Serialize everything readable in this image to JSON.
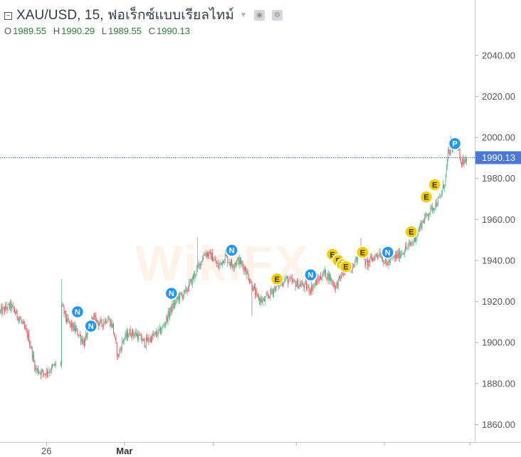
{
  "header": {
    "title": "XAU/USD, 15, ฟอเร็กซ์แบบเรียลไทม์",
    "collapse_icon": "minus-square-icon",
    "tools": [
      "eye-icon",
      "settings-icon"
    ],
    "ohlc": {
      "o_label": "O",
      "o_value": "1989.55",
      "h_label": "H",
      "h_value": "1990.29",
      "l_label": "L",
      "l_value": "1989.55",
      "c_label": "C",
      "c_value": "1990.13"
    }
  },
  "watermark": "WikiFX",
  "colors": {
    "up": "#53b987",
    "down": "#eb4d5c",
    "price_line": "#4a78d6",
    "price_tag": "#4a78d6",
    "event_n": "#2196f3",
    "event_e": "#f5cc00",
    "event_p": "#2196f3"
  },
  "chart_data": {
    "type": "candlestick",
    "symbol": "XAU/USD",
    "interval": "15",
    "y_axis": {
      "ticks": [
        "2040.00",
        "2020.00",
        "2000.00",
        "1980.00",
        "1960.00",
        "1940.00",
        "1920.00",
        "1900.00",
        "1880.00",
        "1860.00"
      ],
      "tick_values": [
        2040,
        2020,
        2000,
        1980,
        1960,
        1940,
        1920,
        1900,
        1880,
        1860
      ],
      "range": [
        1851.5,
        2067
      ],
      "position": "right"
    },
    "x_axis": {
      "labels": [
        {
          "text": "26",
          "index": 55,
          "bold": false
        },
        {
          "text": "Mar",
          "index": 148,
          "bold": true
        }
      ]
    },
    "current_price": "1990.13",
    "current_price_value": 1990.13,
    "price_path": [
      {
        "i": 0,
        "p": 1915
      },
      {
        "i": 12,
        "p": 1918
      },
      {
        "i": 24,
        "p": 1911
      },
      {
        "i": 34,
        "p": 1902
      },
      {
        "i": 42,
        "p": 1887
      },
      {
        "i": 52,
        "p": 1885
      },
      {
        "i": 60,
        "p": 1887
      },
      {
        "i": 68,
        "p": 1890
      },
      {
        "i": 72,
        "p": 1890
      },
      {
        "i": 73,
        "p": 1918
      },
      {
        "i": 80,
        "p": 1910
      },
      {
        "i": 90,
        "p": 1906
      },
      {
        "i": 100,
        "p": 1900
      },
      {
        "i": 110,
        "p": 1912
      },
      {
        "i": 120,
        "p": 1909
      },
      {
        "i": 128,
        "p": 1912
      },
      {
        "i": 134,
        "p": 1908
      },
      {
        "i": 140,
        "p": 1893
      },
      {
        "i": 146,
        "p": 1901
      },
      {
        "i": 154,
        "p": 1905
      },
      {
        "i": 162,
        "p": 1904
      },
      {
        "i": 172,
        "p": 1900
      },
      {
        "i": 182,
        "p": 1903
      },
      {
        "i": 192,
        "p": 1906
      },
      {
        "i": 202,
        "p": 1915
      },
      {
        "i": 212,
        "p": 1922
      },
      {
        "i": 220,
        "p": 1924
      },
      {
        "i": 228,
        "p": 1930
      },
      {
        "i": 236,
        "p": 1937
      },
      {
        "i": 244,
        "p": 1944
      },
      {
        "i": 252,
        "p": 1942
      },
      {
        "i": 260,
        "p": 1937
      },
      {
        "i": 268,
        "p": 1942
      },
      {
        "i": 276,
        "p": 1938
      },
      {
        "i": 284,
        "p": 1940
      },
      {
        "i": 292,
        "p": 1936
      },
      {
        "i": 300,
        "p": 1928
      },
      {
        "i": 306,
        "p": 1922
      },
      {
        "i": 314,
        "p": 1920
      },
      {
        "i": 322,
        "p": 1924
      },
      {
        "i": 330,
        "p": 1928
      },
      {
        "i": 340,
        "p": 1931
      },
      {
        "i": 350,
        "p": 1929
      },
      {
        "i": 360,
        "p": 1928
      },
      {
        "i": 370,
        "p": 1926
      },
      {
        "i": 378,
        "p": 1930
      },
      {
        "i": 386,
        "p": 1934
      },
      {
        "i": 392,
        "p": 1932
      },
      {
        "i": 400,
        "p": 1927
      },
      {
        "i": 408,
        "p": 1934
      },
      {
        "i": 416,
        "p": 1936
      },
      {
        "i": 424,
        "p": 1940
      },
      {
        "i": 430,
        "p": 1946
      },
      {
        "i": 436,
        "p": 1938
      },
      {
        "i": 444,
        "p": 1941
      },
      {
        "i": 452,
        "p": 1944
      },
      {
        "i": 460,
        "p": 1938
      },
      {
        "i": 468,
        "p": 1941
      },
      {
        "i": 476,
        "p": 1943
      },
      {
        "i": 484,
        "p": 1946
      },
      {
        "i": 490,
        "p": 1948
      },
      {
        "i": 496,
        "p": 1952
      },
      {
        "i": 502,
        "p": 1958
      },
      {
        "i": 510,
        "p": 1963
      },
      {
        "i": 518,
        "p": 1967
      },
      {
        "i": 524,
        "p": 1970
      },
      {
        "i": 530,
        "p": 1978
      },
      {
        "i": 534,
        "p": 1992
      },
      {
        "i": 538,
        "p": 1994
      },
      {
        "i": 542,
        "p": 1998
      },
      {
        "i": 546,
        "p": 1994
      },
      {
        "i": 550,
        "p": 1988
      },
      {
        "i": 556,
        "p": 1990.13
      }
    ],
    "events": [
      {
        "letter": "N",
        "index": 92,
        "price": 1915
      },
      {
        "letter": "N",
        "index": 108,
        "price": 1908
      },
      {
        "letter": "N",
        "index": 204,
        "price": 1924
      },
      {
        "letter": "N",
        "index": 276,
        "price": 1945
      },
      {
        "letter": "E",
        "index": 330,
        "price": 1931
      },
      {
        "letter": "N",
        "index": 370,
        "price": 1933
      },
      {
        "letter": "E",
        "index": 396,
        "price": 1943
      },
      {
        "letter": "E",
        "index": 403,
        "price": 1940
      },
      {
        "letter": "E",
        "index": 408,
        "price": 1938
      },
      {
        "letter": "E",
        "index": 412,
        "price": 1937
      },
      {
        "letter": "E",
        "index": 432,
        "price": 1944
      },
      {
        "letter": "N",
        "index": 462,
        "price": 1944
      },
      {
        "letter": "E",
        "index": 490,
        "price": 1954
      },
      {
        "letter": "E",
        "index": 508,
        "price": 1971
      },
      {
        "letter": "E",
        "index": 518,
        "price": 1977
      },
      {
        "letter": "P",
        "index": 542,
        "price": 1997
      }
    ]
  }
}
